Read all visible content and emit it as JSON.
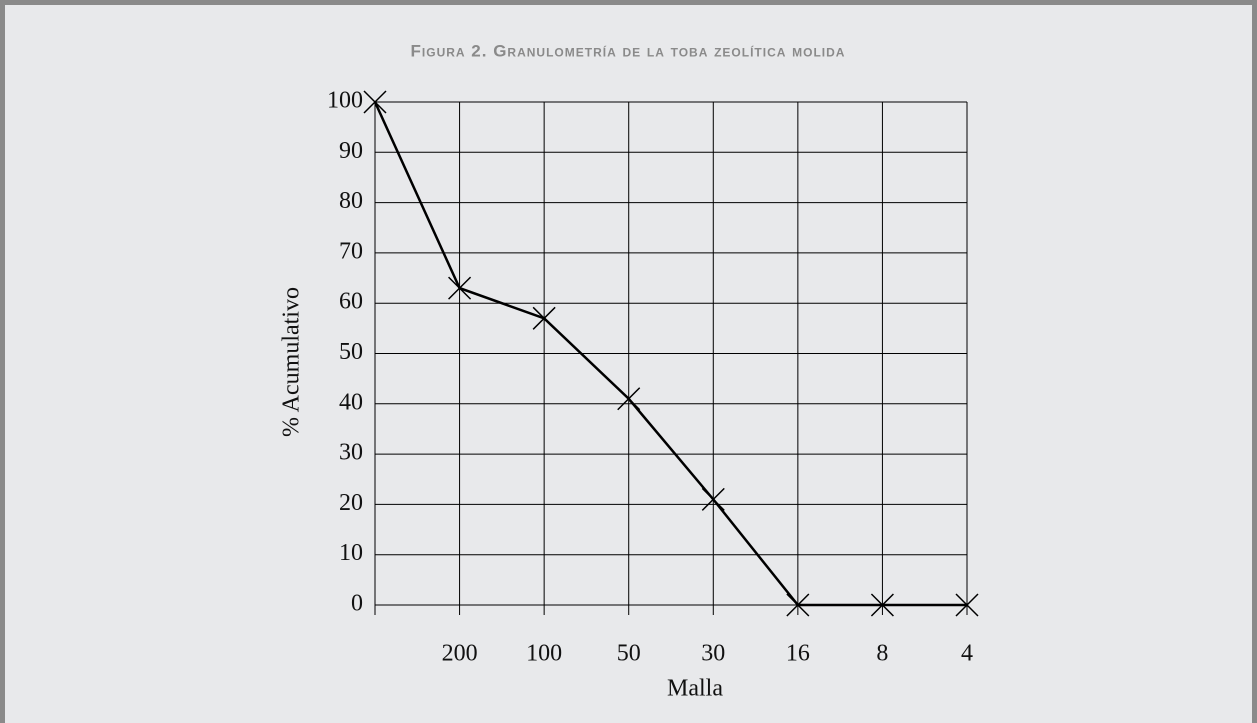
{
  "chart_data": {
    "type": "line",
    "title": "Figura 2. Granulometría de la toba zeolítica molida",
    "xlabel": "Malla",
    "ylabel": "% Acumulativo",
    "categories": [
      null,
      "200",
      "100",
      "50",
      "30",
      "16",
      "8",
      "4"
    ],
    "series": [
      {
        "name": null,
        "color": "#000000",
        "values": [
          100,
          63,
          57,
          41,
          21,
          0,
          0,
          0
        ]
      }
    ],
    "ylim": [
      0,
      100
    ],
    "yticks": [
      0,
      10,
      20,
      30,
      40,
      50,
      60,
      70,
      80,
      90,
      100
    ],
    "grid": true,
    "marker": "x"
  }
}
